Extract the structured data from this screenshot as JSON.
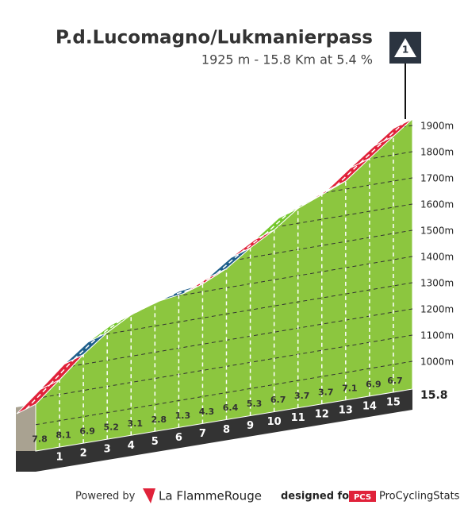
{
  "chart_data": {
    "type": "profile",
    "title": "P.d.Lucomagno/Lukmanierpass",
    "subtitle": "1925 m - 15.8 Km at 5.4 %",
    "summit_marker": "1",
    "x": [
      0,
      1,
      2,
      3,
      4,
      5,
      6,
      7,
      8,
      9,
      10,
      11,
      12,
      13,
      14,
      15,
      15.8
    ],
    "elevation": [
      1078,
      1156,
      1237,
      1306,
      1358,
      1389,
      1417,
      1430,
      1473,
      1537,
      1590,
      1657,
      1694,
      1731,
      1802,
      1871,
      1925
    ],
    "gradients": [
      7.8,
      8.1,
      6.9,
      5.2,
      3.1,
      2.8,
      1.3,
      4.3,
      6.4,
      5.3,
      6.7,
      3.7,
      3.7,
      7.1,
      6.9,
      6.7
    ],
    "segment_colors": [
      "#e0223a",
      "#e0223a",
      "#1f5f8b",
      "#74c72c",
      "#74c72c",
      "#74c72c",
      "#1f5f8b",
      "#e0223a",
      "#1f5f8b",
      "#e0223a",
      "#74c72c",
      "#74c72c",
      "#e0223a",
      "#e0223a",
      "#e0223a",
      "#e0223a"
    ],
    "fill_color": "#8cc63f",
    "ylim": [
      1000,
      1900
    ],
    "yticks": [
      {
        "value": 1000,
        "label": "1000m"
      },
      {
        "value": 1100,
        "label": "1100m"
      },
      {
        "value": 1200,
        "label": "1200m"
      },
      {
        "value": 1300,
        "label": "1300m"
      },
      {
        "value": 1400,
        "label": "1400m"
      },
      {
        "value": 1500,
        "label": "1500m"
      },
      {
        "value": 1600,
        "label": "1600m"
      },
      {
        "value": 1700,
        "label": "1700m"
      },
      {
        "value": 1800,
        "label": "1800m"
      },
      {
        "value": 1900,
        "label": "1900m"
      }
    ],
    "grid": true,
    "footer": {
      "powered_by": "Powered by",
      "brand": "La FlammeRouge",
      "designed_for": "designed for",
      "pcs": "PCS",
      "site": "ProCyclingStats"
    }
  }
}
